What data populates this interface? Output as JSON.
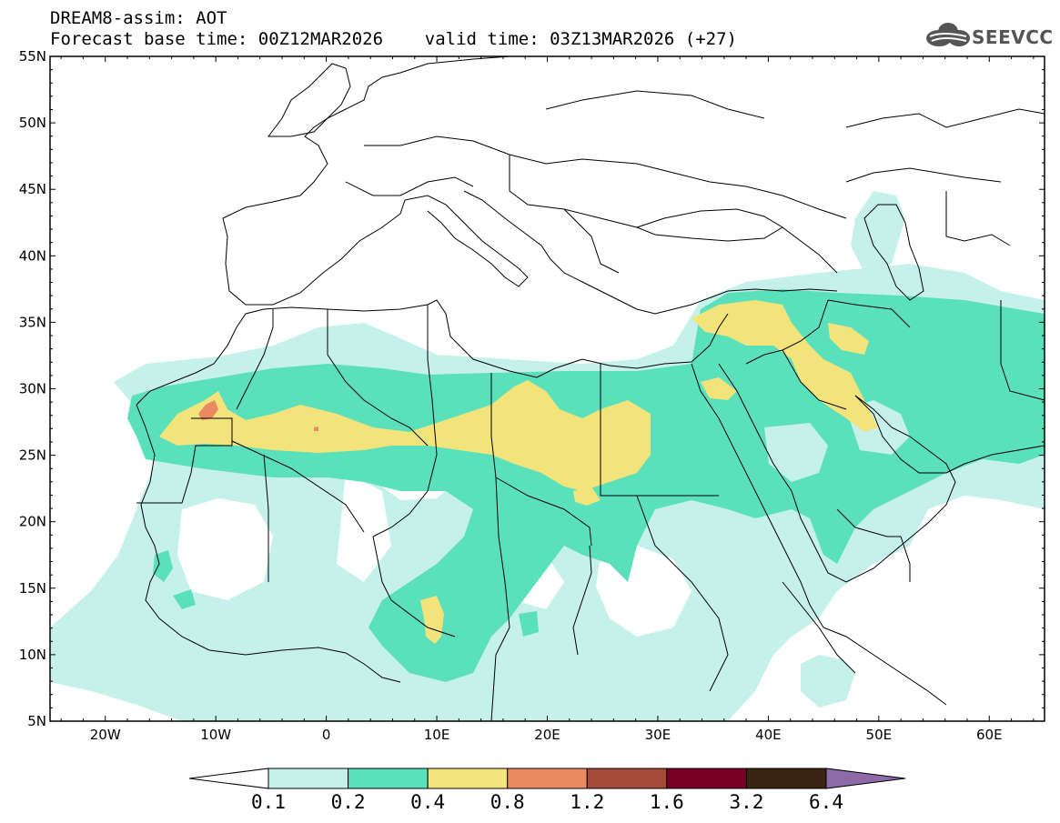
{
  "header": {
    "title_line1": "DREAM8-assim: AOT",
    "title_line2": "Forecast base time: 00Z12MAR2026    valid time: 03Z13MAR2026 (+27)"
  },
  "logo": {
    "text": "SEEVCCC",
    "icon": "cloud-icon"
  },
  "map": {
    "lat_labels": [
      "55N",
      "50N",
      "45N",
      "40N",
      "35N",
      "30N",
      "25N",
      "20N",
      "15N",
      "10N",
      "5N"
    ],
    "lon_labels": [
      "20W",
      "10W",
      "0",
      "10E",
      "20E",
      "30E",
      "40E",
      "50E",
      "60E"
    ],
    "lon_range": [
      -25,
      65
    ],
    "lat_range": [
      5,
      55
    ],
    "variable": "AOT"
  },
  "colorbar": {
    "levels": [
      "0.1",
      "0.2",
      "0.4",
      "0.8",
      "1.2",
      "1.6",
      "3.2",
      "6.4"
    ],
    "colors": [
      "#ffffff",
      "#c6f1ea",
      "#5ae0bb",
      "#f3e37b",
      "#e98a63",
      "#a84a3a",
      "#780024",
      "#3a2512",
      "#8d6aa8"
    ]
  },
  "colors": {
    "aot_0_1": "#c6f1ea",
    "aot_0_2": "#5ae0bb",
    "aot_0_4": "#f3e37b",
    "aot_0_8": "#e98a63",
    "border": "#000000"
  }
}
